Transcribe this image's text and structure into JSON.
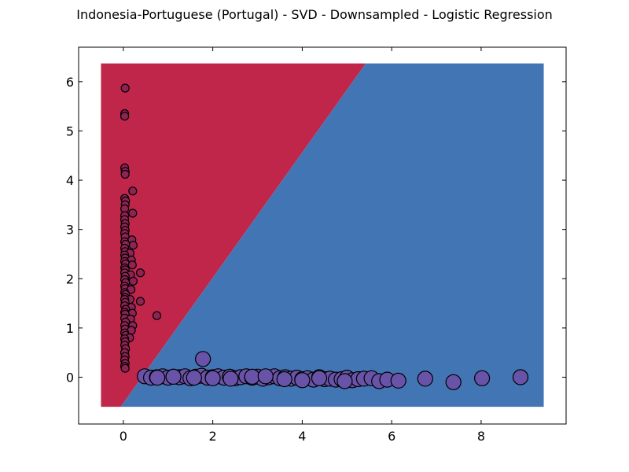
{
  "chart_data": {
    "type": "scatter",
    "title": "Indonesia-Portuguese (Portugal) - SVD - Downsampled - Logistic Regression",
    "xlabel": "",
    "ylabel": "",
    "xlim": [
      -1,
      9.9
    ],
    "ylim": [
      -0.95,
      6.7
    ],
    "x_ticks": [
      0,
      2,
      4,
      6,
      8
    ],
    "y_ticks": [
      0,
      1,
      2,
      3,
      4,
      5,
      6
    ],
    "grid": false,
    "decision_regions": {
      "extent": {
        "x": [
          -0.5,
          9.4
        ],
        "y": [
          -0.6,
          6.37
        ]
      },
      "boundary": [
        [
          -0.06,
          -0.6
        ],
        [
          5.42,
          6.37
        ]
      ],
      "left_color": "#c0264a",
      "right_color": "#4275b4"
    },
    "series": [
      {
        "color": "#8e2453",
        "marker_size": "small",
        "points": [
          [
            0.04,
            5.87
          ],
          [
            0.03,
            5.35
          ],
          [
            0.03,
            5.3
          ],
          [
            0.03,
            4.25
          ],
          [
            0.04,
            4.18
          ],
          [
            0.04,
            4.12
          ],
          [
            0.21,
            3.78
          ],
          [
            0.03,
            3.63
          ],
          [
            0.05,
            3.58
          ],
          [
            0.04,
            3.5
          ],
          [
            0.03,
            3.42
          ],
          [
            0.21,
            3.33
          ],
          [
            0.03,
            3.28
          ],
          [
            0.03,
            3.2
          ],
          [
            0.04,
            3.12
          ],
          [
            0.03,
            3.05
          ],
          [
            0.04,
            2.98
          ],
          [
            0.03,
            2.92
          ],
          [
            0.04,
            2.85
          ],
          [
            0.19,
            2.79
          ],
          [
            0.03,
            2.75
          ],
          [
            0.05,
            2.7
          ],
          [
            0.22,
            2.68
          ],
          [
            0.03,
            2.62
          ],
          [
            0.04,
            2.55
          ],
          [
            0.15,
            2.52
          ],
          [
            0.03,
            2.48
          ],
          [
            0.04,
            2.42
          ],
          [
            0.18,
            2.38
          ],
          [
            0.03,
            2.35
          ],
          [
            0.05,
            2.3
          ],
          [
            0.2,
            2.28
          ],
          [
            0.03,
            2.22
          ],
          [
            0.04,
            2.18
          ],
          [
            0.38,
            2.12
          ],
          [
            0.03,
            2.12
          ],
          [
            0.16,
            2.08
          ],
          [
            0.04,
            2.05
          ],
          [
            0.03,
            1.98
          ],
          [
            0.22,
            1.95
          ],
          [
            0.05,
            1.92
          ],
          [
            0.03,
            1.85
          ],
          [
            0.04,
            1.8
          ],
          [
            0.17,
            1.78
          ],
          [
            0.03,
            1.72
          ],
          [
            0.05,
            1.68
          ],
          [
            0.04,
            1.62
          ],
          [
            0.15,
            1.58
          ],
          [
            0.03,
            1.58
          ],
          [
            0.38,
            1.54
          ],
          [
            0.04,
            1.52
          ],
          [
            0.03,
            1.45
          ],
          [
            0.18,
            1.42
          ],
          [
            0.05,
            1.38
          ],
          [
            0.03,
            1.32
          ],
          [
            0.2,
            1.3
          ],
          [
            0.04,
            1.28
          ],
          [
            0.75,
            1.25
          ],
          [
            0.03,
            1.2
          ],
          [
            0.16,
            1.18
          ],
          [
            0.05,
            1.12
          ],
          [
            0.21,
            1.05
          ],
          [
            0.03,
            1.05
          ],
          [
            0.04,
            0.98
          ],
          [
            0.18,
            0.95
          ],
          [
            0.03,
            0.9
          ],
          [
            0.05,
            0.85
          ],
          [
            0.14,
            0.8
          ],
          [
            0.03,
            0.78
          ],
          [
            0.04,
            0.72
          ],
          [
            0.03,
            0.65
          ],
          [
            0.05,
            0.58
          ],
          [
            0.03,
            0.5
          ],
          [
            0.04,
            0.42
          ],
          [
            0.03,
            0.35
          ],
          [
            0.04,
            0.28
          ],
          [
            0.03,
            0.22
          ],
          [
            0.04,
            0.18
          ]
        ]
      },
      {
        "color": "#6953a8",
        "marker_size": "large",
        "points": [
          [
            1.78,
            0.37
          ],
          [
            0.48,
            0.02
          ],
          [
            0.62,
            -0.01
          ],
          [
            0.75,
            0.0
          ],
          [
            0.88,
            0.02
          ],
          [
            1.0,
            -0.01
          ],
          [
            1.12,
            0.01
          ],
          [
            1.25,
            0.0
          ],
          [
            1.38,
            0.02
          ],
          [
            1.5,
            -0.02
          ],
          [
            1.62,
            0.01
          ],
          [
            1.75,
            0.03
          ],
          [
            1.88,
            -0.01
          ],
          [
            2.0,
            0.0
          ],
          [
            2.12,
            0.02
          ],
          [
            2.25,
            -0.01
          ],
          [
            2.38,
            0.01
          ],
          [
            2.5,
            -0.02
          ],
          [
            2.62,
            0.0
          ],
          [
            2.75,
            0.02
          ],
          [
            2.88,
            -0.01
          ],
          [
            3.0,
            0.01
          ],
          [
            3.12,
            -0.03
          ],
          [
            3.25,
            0.0
          ],
          [
            3.38,
            0.02
          ],
          [
            3.5,
            -0.02
          ],
          [
            3.62,
            0.0
          ],
          [
            3.75,
            -0.03
          ],
          [
            3.88,
            -0.01
          ],
          [
            4.0,
            -0.04
          ],
          [
            4.12,
            -0.02
          ],
          [
            4.25,
            -0.05
          ],
          [
            4.38,
            0.0
          ],
          [
            4.5,
            -0.04
          ],
          [
            4.62,
            -0.03
          ],
          [
            4.75,
            -0.05
          ],
          [
            4.88,
            -0.04
          ],
          [
            5.0,
            -0.01
          ],
          [
            5.12,
            -0.06
          ],
          [
            5.25,
            -0.04
          ],
          [
            5.38,
            -0.03
          ],
          [
            5.55,
            -0.02
          ],
          [
            5.72,
            -0.08
          ],
          [
            5.9,
            -0.05
          ],
          [
            6.15,
            -0.07
          ],
          [
            6.75,
            -0.03
          ],
          [
            7.38,
            -0.1
          ],
          [
            8.02,
            -0.02
          ],
          [
            8.88,
            0.0
          ],
          [
            0.76,
            -0.01
          ],
          [
            1.12,
            0.01
          ],
          [
            1.58,
            -0.01
          ],
          [
            2.0,
            -0.02
          ],
          [
            2.4,
            -0.03
          ],
          [
            2.88,
            0.01
          ],
          [
            3.18,
            0.02
          ],
          [
            3.6,
            -0.04
          ],
          [
            4.0,
            -0.06
          ],
          [
            4.38,
            -0.02
          ],
          [
            4.95,
            -0.08
          ]
        ]
      }
    ]
  }
}
